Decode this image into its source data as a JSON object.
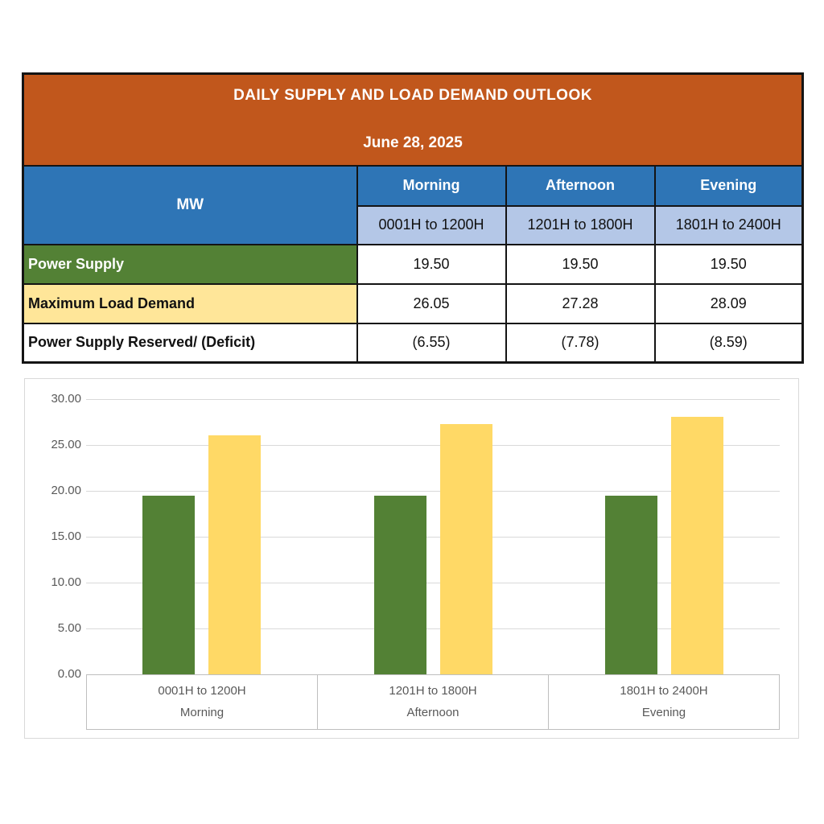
{
  "table": {
    "title": "DAILY SUPPLY AND LOAD DEMAND OUTLOOK",
    "date": "June 28, 2025",
    "unit_header": "MW",
    "columns": [
      {
        "period": "Morning",
        "time_range": "0001H to 1200H"
      },
      {
        "period": "Afternoon",
        "time_range": "1201H to 1800H"
      },
      {
        "period": "Evening",
        "time_range": "1801H to 2400H"
      }
    ],
    "rows": [
      {
        "label": "Power Supply",
        "values": [
          "19.50",
          "19.50",
          "19.50"
        ]
      },
      {
        "label": "Maximum Load Demand",
        "values": [
          "26.05",
          "27.28",
          "28.09"
        ]
      },
      {
        "label": "Power Supply Reserved/ (Deficit)",
        "values": [
          "(6.55)",
          "(7.78)",
          "(8.59)"
        ]
      }
    ]
  },
  "chart_data": {
    "type": "bar",
    "title": "",
    "xlabel": "",
    "ylabel": "",
    "categories": [
      "0001H to 1200H",
      "1201H to 1800H",
      "1801H to 2400H"
    ],
    "category_groups": [
      "Morning",
      "Afternoon",
      "Evening"
    ],
    "series": [
      {
        "name": "Power Supply",
        "color": "#538135",
        "values": [
          19.5,
          19.5,
          19.5
        ]
      },
      {
        "name": "Maximum Load Demand",
        "color": "#FFD966",
        "values": [
          26.05,
          27.28,
          28.09
        ]
      }
    ],
    "ylim": [
      0,
      30
    ],
    "ytick_step": 5,
    "ytick_labels": [
      "0.00",
      "5.00",
      "10.00",
      "15.00",
      "20.00",
      "25.00",
      "30.00"
    ],
    "grid": true,
    "legend": "none"
  },
  "colors": {
    "title_band": "#C1571C",
    "period_header": "#2E75B6",
    "time_range_band": "#B4C7E7",
    "power_supply_row": "#538135",
    "max_load_row": "#FFE699",
    "bar_power_supply": "#538135",
    "bar_max_load": "#FFD966"
  }
}
